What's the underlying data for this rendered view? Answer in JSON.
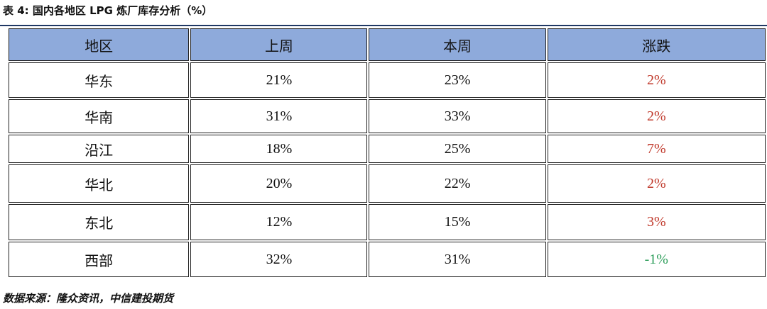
{
  "title": "表 4: 国内各地区 LPG 炼厂库存分析（%）",
  "table": {
    "header": [
      "地区",
      "上周",
      "本周",
      "涨跌"
    ],
    "rows": [
      [
        "华东",
        "21%",
        "23%",
        "2%"
      ],
      [
        "华南",
        "31%",
        "33%",
        "2%"
      ],
      [
        "沿江",
        "18%",
        "25%",
        "7%"
      ],
      [
        "华北",
        "20%",
        "22%",
        "2%"
      ],
      [
        "东北",
        "12%",
        "15%",
        "3%"
      ],
      [
        "西部",
        "32%",
        "31%",
        "-1%"
      ]
    ]
  },
  "source": "数据来源：隆众资讯，中信建投期货"
}
